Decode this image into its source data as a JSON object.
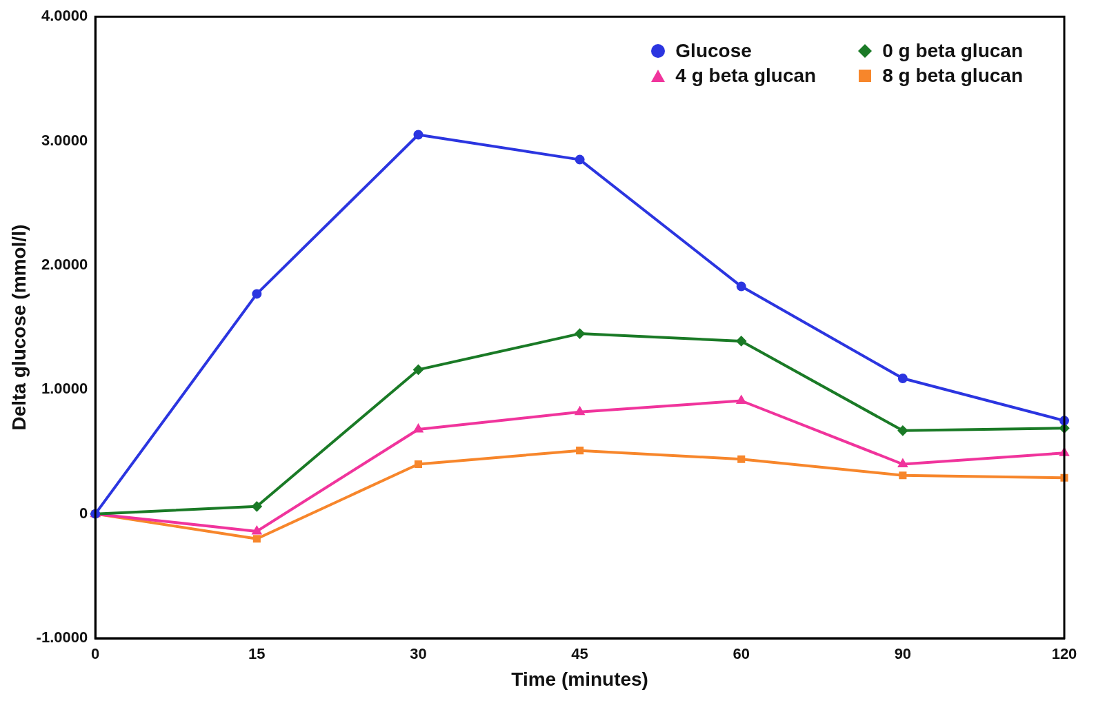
{
  "chart_data": {
    "type": "line",
    "xlabel": "Time (minutes)",
    "ylabel": "Delta glucose (mmol/l)",
    "categories": [
      "0",
      "15",
      "30",
      "45",
      "60",
      "90",
      "120"
    ],
    "ylim": [
      -1,
      4
    ],
    "yticks": [
      {
        "value": -1,
        "label": "-1.0000"
      },
      0,
      {
        "value": 1,
        "label": "1.0000"
      },
      {
        "value": 2,
        "label": "2.0000"
      },
      {
        "value": 3,
        "label": "3.0000"
      },
      {
        "value": 4,
        "label": "4.0000"
      }
    ],
    "grid": false,
    "legend": "top right",
    "line_style": "solid",
    "series": [
      {
        "name": "Glucose",
        "color": "#2b35e0",
        "marker": "circle",
        "values": [
          0,
          1.77,
          3.05,
          2.85,
          1.83,
          1.09,
          0.75
        ]
      },
      {
        "name": "0 g beta glucan",
        "color": "#1a7a26",
        "marker": "diamond",
        "values": [
          0,
          0.06,
          1.16,
          1.45,
          1.39,
          0.67,
          0.69
        ]
      },
      {
        "name": "4 g beta glucan",
        "color": "#f0349c",
        "marker": "triangle",
        "values": [
          0,
          -0.14,
          0.68,
          0.82,
          0.91,
          0.4,
          0.49
        ]
      },
      {
        "name": "8 g beta glucan",
        "color": "#f7862b",
        "marker": "square",
        "values": [
          0,
          -0.2,
          0.4,
          0.51,
          0.44,
          0.31,
          0.29
        ]
      }
    ]
  }
}
